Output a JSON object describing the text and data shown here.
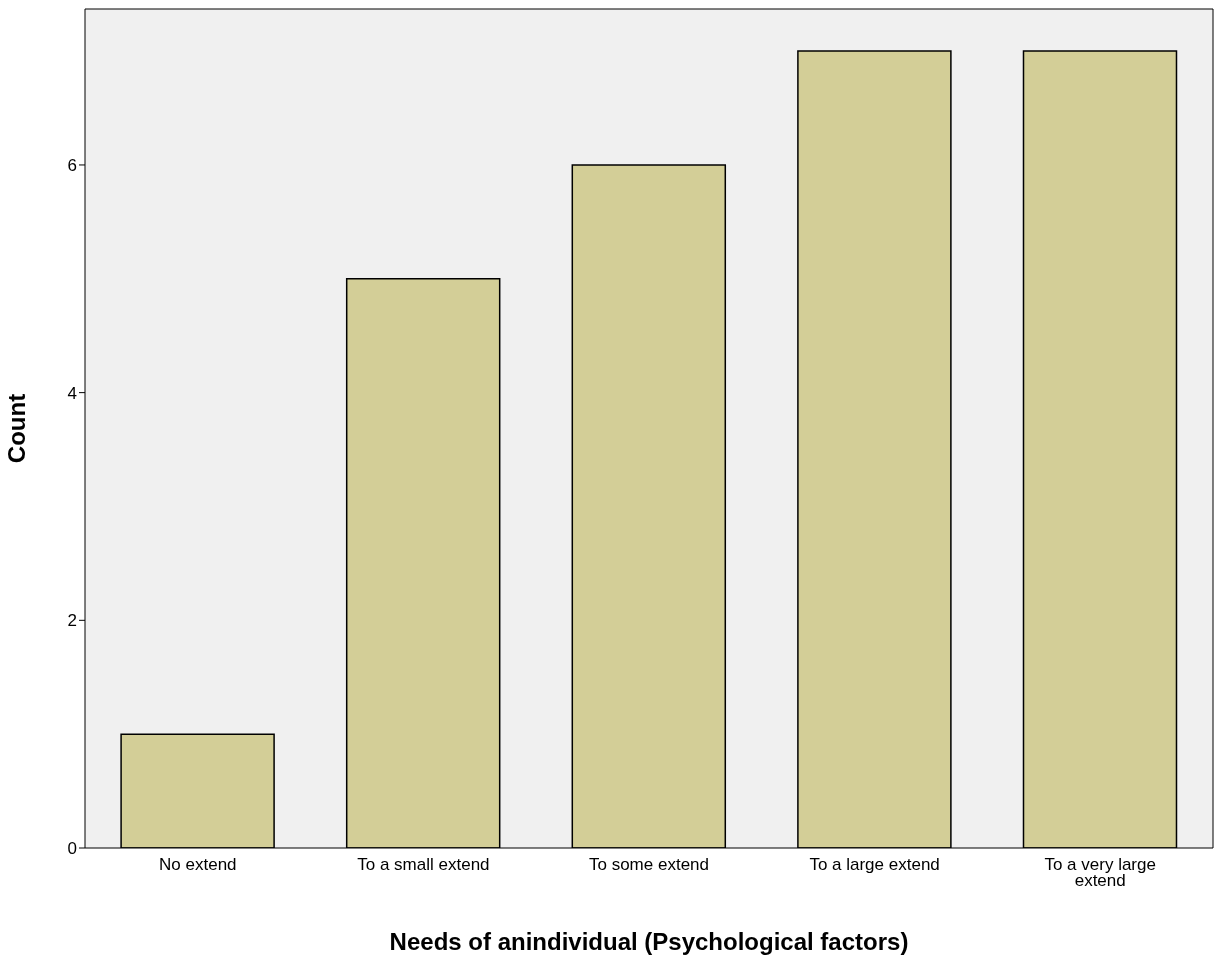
{
  "chart_data": {
    "type": "bar",
    "xlabel": "Needs of anindividual (Psychological factors)",
    "ylabel": "Count",
    "categories": [
      "No extend",
      "To a small extend",
      "To some extend",
      "To a large extend",
      "To a very large extend"
    ],
    "values": [
      1,
      5,
      6,
      7,
      7
    ],
    "color": "#d3ce97",
    "ylim": [
      0,
      7.37
    ],
    "yticks": [
      0,
      2,
      4,
      6
    ],
    "grid": false
  }
}
